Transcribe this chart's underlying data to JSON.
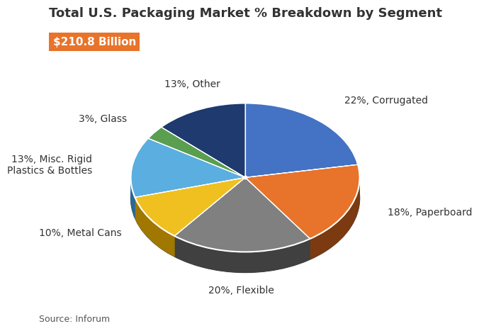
{
  "title": "Total U.S. Packaging Market % Breakdown by Segment",
  "subtitle_text": "$210.8 Billion",
  "subtitle_bg": "#E8732A",
  "subtitle_text_color": "white",
  "source": "Source: Inforum",
  "segments": [
    {
      "label": "22%, Corrugated",
      "value": 22,
      "color": "#4472C4",
      "side_color": "#2E5087"
    },
    {
      "label": "18%, Paperboard",
      "value": 18,
      "color": "#E8732A",
      "side_color": "#7B3A10"
    },
    {
      "label": "20%, Flexible",
      "value": 20,
      "color": "#808080",
      "side_color": "#404040"
    },
    {
      "label": "10%, Metal Cans",
      "value": 10,
      "color": "#F0C020",
      "side_color": "#A07800"
    },
    {
      "label": "13%, Misc. Rigid\nPlastics & Bottles",
      "value": 13,
      "color": "#5BAEE0",
      "side_color": "#2A6898"
    },
    {
      "label": "3%, Glass",
      "value": 3,
      "color": "#5A9E50",
      "side_color": "#2E6028"
    },
    {
      "label": "13%, Other",
      "value": 13,
      "color": "#1E3A6E",
      "side_color": "#0F1E3A"
    }
  ],
  "background_color": "#FFFFFF",
  "title_fontsize": 13,
  "label_fontsize": 10,
  "source_fontsize": 9
}
